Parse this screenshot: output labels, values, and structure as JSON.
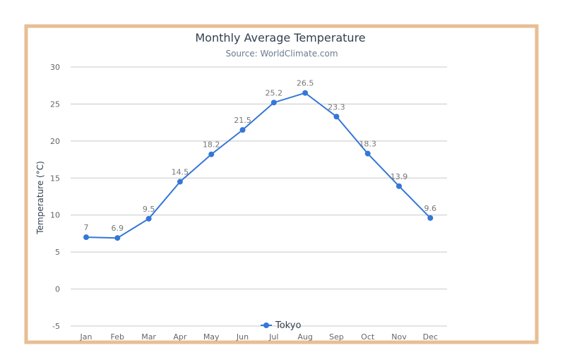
{
  "chart_data": {
    "type": "line",
    "title": "Monthly Average Temperature",
    "subtitle": "Source: WorldClimate.com",
    "xlabel": "",
    "ylabel": "Temperature (°C)",
    "categories": [
      "Jan",
      "Feb",
      "Mar",
      "Apr",
      "May",
      "Jun",
      "Jul",
      "Aug",
      "Sep",
      "Oct",
      "Nov",
      "Dec"
    ],
    "ylim": [
      -5,
      30
    ],
    "yticks": [
      30,
      25,
      20,
      15,
      10,
      5,
      0,
      -5
    ],
    "grid": true,
    "legend_position": "bottom-center",
    "series": [
      {
        "name": "Tokyo",
        "color": "#3477d8",
        "values": [
          7,
          6.9,
          9.5,
          14.5,
          18.2,
          21.5,
          25.2,
          26.5,
          23.3,
          18.3,
          13.9,
          9.6
        ]
      }
    ]
  }
}
